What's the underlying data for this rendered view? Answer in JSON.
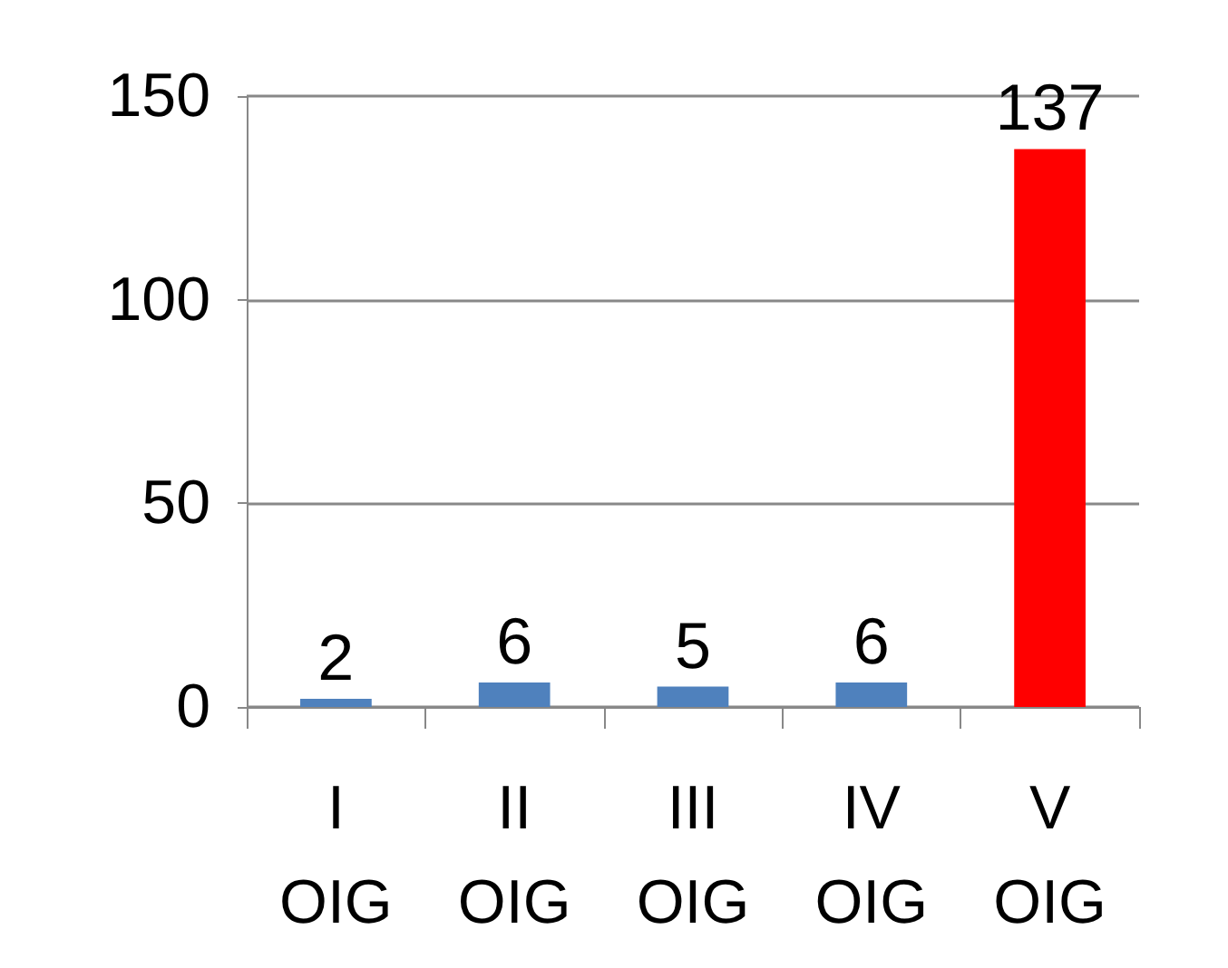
{
  "chart_data": {
    "type": "bar",
    "categories": [
      "I\nOIG",
      "II\nOIG",
      "III\nOIG",
      "IV\nOIG",
      "V\nOIG"
    ],
    "values": [
      2,
      6,
      5,
      6,
      137
    ],
    "colors": [
      "#4f81bd",
      "#4f81bd",
      "#4f81bd",
      "#4f81bd",
      "#ff0000"
    ],
    "ylim": [
      0,
      150
    ],
    "yticks": [
      0,
      50,
      100,
      150
    ],
    "grid": "y",
    "data_labels": true
  }
}
